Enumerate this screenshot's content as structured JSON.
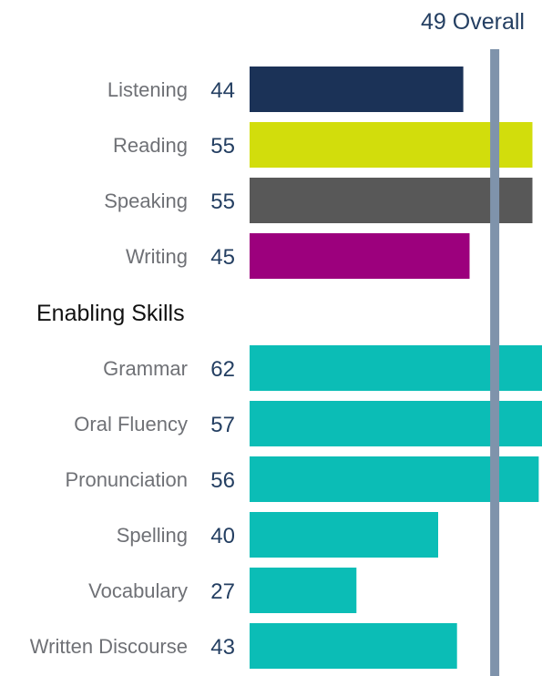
{
  "chart_data": {
    "type": "bar",
    "orientation": "horizontal",
    "overall": {
      "value": 49,
      "label": "Overall"
    },
    "section_heading": "Enabling Skills",
    "xlim": [
      10,
      90
    ],
    "grid": false,
    "groups": [
      {
        "name": "",
        "items": [
          {
            "label": "Listening",
            "value": 44,
            "color": "#1b3257"
          },
          {
            "label": "Reading",
            "value": 55,
            "color": "#d2dd0c"
          },
          {
            "label": "Speaking",
            "value": 55,
            "color": "#585858"
          },
          {
            "label": "Writing",
            "value": 45,
            "color": "#9c007d"
          }
        ]
      },
      {
        "name": "Enabling Skills",
        "items": [
          {
            "label": "Grammar",
            "value": 62,
            "color": "#0bbdb6"
          },
          {
            "label": "Oral Fluency",
            "value": 57,
            "color": "#0bbdb6"
          },
          {
            "label": "Pronunciation",
            "value": 56,
            "color": "#0bbdb6"
          },
          {
            "label": "Spelling",
            "value": 40,
            "color": "#0bbdb6"
          },
          {
            "label": "Vocabulary",
            "value": 27,
            "color": "#0bbdb6"
          },
          {
            "label": "Written Discourse",
            "value": 43,
            "color": "#0bbdb6"
          }
        ]
      }
    ],
    "overall_line_color": "#7f93ab"
  }
}
